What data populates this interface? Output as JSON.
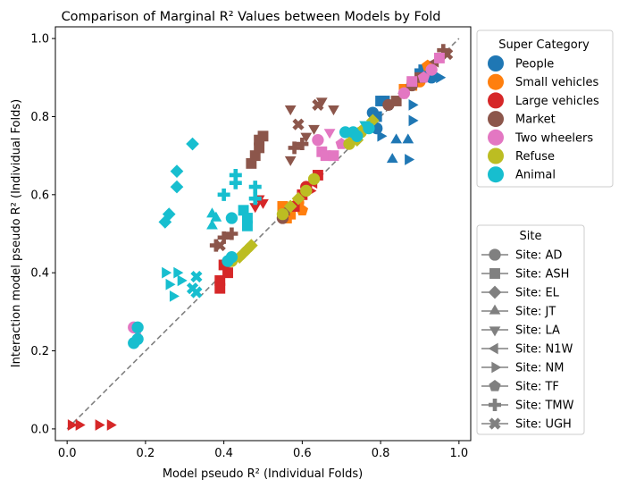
{
  "chart_data": {
    "type": "scatter",
    "title": "Comparison of Marginal R² Values between Models by Fold",
    "xlabel": "Model pseudo R² (Individual Folds)",
    "ylabel": "Interaction model pseudo R² (Individual Folds)",
    "xlim": [
      -0.03,
      1.03
    ],
    "ylim": [
      -0.03,
      1.03
    ],
    "xticks": [
      "0.0",
      "0.2",
      "0.4",
      "0.6",
      "0.8",
      "1.0"
    ],
    "yticks": [
      "0.0",
      "0.2",
      "0.4",
      "0.6",
      "0.8",
      "1.0"
    ],
    "reference_line": "y = x (dashed, gray)",
    "grid": false,
    "legends": [
      {
        "title": "Super Category",
        "placement": "top-right outside",
        "entries": [
          {
            "label": "People",
            "color": "#1f77b4"
          },
          {
            "label": "Small vehicles",
            "color": "#ff7f0e"
          },
          {
            "label": "Large vehicles",
            "color": "#d62728"
          },
          {
            "label": "Market",
            "color": "#8c564b"
          },
          {
            "label": "Two wheelers",
            "color": "#e377c2"
          },
          {
            "label": "Refuse",
            "color": "#bcbd22"
          },
          {
            "label": "Animal",
            "color": "#17becf"
          }
        ]
      },
      {
        "title": "Site",
        "placement": "bottom-right outside",
        "entries": [
          {
            "label": "Site: AD",
            "marker": "circle"
          },
          {
            "label": "Site: ASH",
            "marker": "square"
          },
          {
            "label": "Site: EL",
            "marker": "diamond"
          },
          {
            "label": "Site: JT",
            "marker": "triangle-up"
          },
          {
            "label": "Site: LA",
            "marker": "triangle-down"
          },
          {
            "label": "Site: N1W",
            "marker": "triangle-left"
          },
          {
            "label": "Site: NM",
            "marker": "triangle-right"
          },
          {
            "label": "Site: TF",
            "marker": "pentagon"
          },
          {
            "label": "Site: TMW",
            "marker": "plus"
          },
          {
            "label": "Site: UGH",
            "marker": "x"
          }
        ]
      }
    ],
    "series": [
      {
        "name": "People",
        "color": "#1f77b4",
        "points": [
          {
            "x": 0.78,
            "y": 0.81,
            "m": "circle"
          },
          {
            "x": 0.79,
            "y": 0.8,
            "m": "square"
          },
          {
            "x": 0.8,
            "y": 0.84,
            "m": "square"
          },
          {
            "x": 0.81,
            "y": 0.84,
            "m": "square"
          },
          {
            "x": 0.82,
            "y": 0.83,
            "m": "pentagon"
          },
          {
            "x": 0.84,
            "y": 0.74,
            "m": "triangle-up"
          },
          {
            "x": 0.87,
            "y": 0.74,
            "m": "triangle-up"
          },
          {
            "x": 0.83,
            "y": 0.69,
            "m": "triangle-up"
          },
          {
            "x": 0.87,
            "y": 0.69,
            "m": "triangle-right"
          },
          {
            "x": 0.88,
            "y": 0.79,
            "m": "triangle-right"
          },
          {
            "x": 0.88,
            "y": 0.83,
            "m": "triangle-right"
          },
          {
            "x": 0.9,
            "y": 0.91,
            "m": "square"
          },
          {
            "x": 0.91,
            "y": 0.92,
            "m": "square"
          },
          {
            "x": 0.93,
            "y": 0.9,
            "m": "circle"
          },
          {
            "x": 0.95,
            "y": 0.9,
            "m": "triangle-right"
          },
          {
            "x": 0.79,
            "y": 0.77,
            "m": "circle"
          },
          {
            "x": 0.8,
            "y": 0.75,
            "m": "triangle-right"
          }
        ]
      },
      {
        "name": "Small vehicles",
        "color": "#ff7f0e",
        "points": [
          {
            "x": 0.57,
            "y": 0.55,
            "m": "square"
          },
          {
            "x": 0.56,
            "y": 0.54,
            "m": "square"
          },
          {
            "x": 0.58,
            "y": 0.57,
            "m": "square"
          },
          {
            "x": 0.59,
            "y": 0.58,
            "m": "circle"
          },
          {
            "x": 0.6,
            "y": 0.56,
            "m": "pentagon"
          },
          {
            "x": 0.55,
            "y": 0.57,
            "m": "square"
          },
          {
            "x": 0.88,
            "y": 0.88,
            "m": "square"
          },
          {
            "x": 0.9,
            "y": 0.89,
            "m": "circle"
          },
          {
            "x": 0.92,
            "y": 0.93,
            "m": "pentagon"
          },
          {
            "x": 0.86,
            "y": 0.87,
            "m": "square"
          }
        ]
      },
      {
        "name": "Large vehicles",
        "color": "#d62728",
        "points": [
          {
            "x": 0.01,
            "y": 0.01,
            "m": "triangle-right"
          },
          {
            "x": 0.03,
            "y": 0.01,
            "m": "triangle-right"
          },
          {
            "x": 0.08,
            "y": 0.01,
            "m": "triangle-right"
          },
          {
            "x": 0.11,
            "y": 0.01,
            "m": "triangle-right"
          },
          {
            "x": 0.39,
            "y": 0.38,
            "m": "square"
          },
          {
            "x": 0.4,
            "y": 0.42,
            "m": "square"
          },
          {
            "x": 0.41,
            "y": 0.4,
            "m": "square"
          },
          {
            "x": 0.39,
            "y": 0.36,
            "m": "square"
          },
          {
            "x": 0.48,
            "y": 0.57,
            "m": "triangle-down"
          },
          {
            "x": 0.49,
            "y": 0.59,
            "m": "triangle-down"
          },
          {
            "x": 0.5,
            "y": 0.58,
            "m": "triangle-down"
          },
          {
            "x": 0.6,
            "y": 0.6,
            "m": "square"
          },
          {
            "x": 0.61,
            "y": 0.62,
            "m": "circle"
          },
          {
            "x": 0.63,
            "y": 0.63,
            "m": "triangle-left"
          },
          {
            "x": 0.64,
            "y": 0.65,
            "m": "square"
          },
          {
            "x": 0.58,
            "y": 0.57,
            "m": "square"
          },
          {
            "x": 0.62,
            "y": 0.61,
            "m": "triangle-right"
          }
        ]
      },
      {
        "name": "Market",
        "color": "#8c564b",
        "points": [
          {
            "x": 0.38,
            "y": 0.47,
            "m": "plus"
          },
          {
            "x": 0.4,
            "y": 0.49,
            "m": "plus"
          },
          {
            "x": 0.42,
            "y": 0.5,
            "m": "plus"
          },
          {
            "x": 0.39,
            "y": 0.47,
            "m": "x"
          },
          {
            "x": 0.47,
            "y": 0.68,
            "m": "square"
          },
          {
            "x": 0.48,
            "y": 0.7,
            "m": "square"
          },
          {
            "x": 0.49,
            "y": 0.74,
            "m": "square"
          },
          {
            "x": 0.5,
            "y": 0.75,
            "m": "square"
          },
          {
            "x": 0.49,
            "y": 0.72,
            "m": "square"
          },
          {
            "x": 0.55,
            "y": 0.54,
            "m": "circle"
          },
          {
            "x": 0.56,
            "y": 0.56,
            "m": "triangle-left"
          },
          {
            "x": 0.57,
            "y": 0.82,
            "m": "triangle-down"
          },
          {
            "x": 0.58,
            "y": 0.72,
            "m": "plus"
          },
          {
            "x": 0.59,
            "y": 0.78,
            "m": "x"
          },
          {
            "x": 0.6,
            "y": 0.73,
            "m": "plus"
          },
          {
            "x": 0.61,
            "y": 0.75,
            "m": "triangle-down"
          },
          {
            "x": 0.63,
            "y": 0.77,
            "m": "triangle-down"
          },
          {
            "x": 0.64,
            "y": 0.83,
            "m": "x"
          },
          {
            "x": 0.65,
            "y": 0.84,
            "m": "triangle-down"
          },
          {
            "x": 0.68,
            "y": 0.82,
            "m": "triangle-down"
          },
          {
            "x": 0.57,
            "y": 0.69,
            "m": "triangle-down"
          },
          {
            "x": 0.82,
            "y": 0.83,
            "m": "circle"
          },
          {
            "x": 0.84,
            "y": 0.84,
            "m": "square"
          },
          {
            "x": 0.86,
            "y": 0.86,
            "m": "triangle-left"
          },
          {
            "x": 0.88,
            "y": 0.88,
            "m": "circle"
          },
          {
            "x": 0.9,
            "y": 0.9,
            "m": "square"
          },
          {
            "x": 0.94,
            "y": 0.94,
            "m": "triangle-left"
          },
          {
            "x": 0.96,
            "y": 0.97,
            "m": "plus"
          },
          {
            "x": 0.97,
            "y": 0.96,
            "m": "x"
          }
        ]
      },
      {
        "name": "Two wheelers",
        "color": "#e377c2",
        "points": [
          {
            "x": 0.17,
            "y": 0.26,
            "m": "circle"
          },
          {
            "x": 0.18,
            "y": 0.25,
            "m": "triangle-left"
          },
          {
            "x": 0.64,
            "y": 0.74,
            "m": "circle"
          },
          {
            "x": 0.65,
            "y": 0.71,
            "m": "square"
          },
          {
            "x": 0.66,
            "y": 0.7,
            "m": "square"
          },
          {
            "x": 0.67,
            "y": 0.76,
            "m": "triangle-down"
          },
          {
            "x": 0.68,
            "y": 0.7,
            "m": "square"
          },
          {
            "x": 0.7,
            "y": 0.73,
            "m": "pentagon"
          },
          {
            "x": 0.86,
            "y": 0.86,
            "m": "circle"
          },
          {
            "x": 0.88,
            "y": 0.89,
            "m": "square"
          },
          {
            "x": 0.91,
            "y": 0.9,
            "m": "pentagon"
          },
          {
            "x": 0.93,
            "y": 0.92,
            "m": "circle"
          },
          {
            "x": 0.95,
            "y": 0.95,
            "m": "square"
          }
        ]
      },
      {
        "name": "Refuse",
        "color": "#bcbd22",
        "points": [
          {
            "x": 0.42,
            "y": 0.43,
            "m": "circle"
          },
          {
            "x": 0.44,
            "y": 0.44,
            "m": "diamond"
          },
          {
            "x": 0.45,
            "y": 0.45,
            "m": "diamond"
          },
          {
            "x": 0.46,
            "y": 0.46,
            "m": "diamond"
          },
          {
            "x": 0.47,
            "y": 0.47,
            "m": "diamond"
          },
          {
            "x": 0.55,
            "y": 0.55,
            "m": "circle"
          },
          {
            "x": 0.57,
            "y": 0.57,
            "m": "diamond"
          },
          {
            "x": 0.59,
            "y": 0.59,
            "m": "diamond"
          },
          {
            "x": 0.61,
            "y": 0.61,
            "m": "circle"
          },
          {
            "x": 0.63,
            "y": 0.64,
            "m": "circle"
          },
          {
            "x": 0.72,
            "y": 0.73,
            "m": "circle"
          },
          {
            "x": 0.73,
            "y": 0.75,
            "m": "square"
          },
          {
            "x": 0.74,
            "y": 0.74,
            "m": "diamond"
          },
          {
            "x": 0.75,
            "y": 0.76,
            "m": "circle"
          },
          {
            "x": 0.76,
            "y": 0.77,
            "m": "pentagon"
          },
          {
            "x": 0.78,
            "y": 0.79,
            "m": "diamond"
          }
        ]
      },
      {
        "name": "Animal",
        "color": "#17becf",
        "points": [
          {
            "x": 0.17,
            "y": 0.22,
            "m": "circle"
          },
          {
            "x": 0.18,
            "y": 0.23,
            "m": "circle"
          },
          {
            "x": 0.18,
            "y": 0.26,
            "m": "circle"
          },
          {
            "x": 0.25,
            "y": 0.53,
            "m": "diamond"
          },
          {
            "x": 0.26,
            "y": 0.55,
            "m": "diamond"
          },
          {
            "x": 0.28,
            "y": 0.62,
            "m": "diamond"
          },
          {
            "x": 0.28,
            "y": 0.66,
            "m": "diamond"
          },
          {
            "x": 0.32,
            "y": 0.73,
            "m": "diamond"
          },
          {
            "x": 0.25,
            "y": 0.4,
            "m": "triangle-right"
          },
          {
            "x": 0.26,
            "y": 0.37,
            "m": "triangle-right"
          },
          {
            "x": 0.27,
            "y": 0.34,
            "m": "triangle-right"
          },
          {
            "x": 0.28,
            "y": 0.4,
            "m": "triangle-right"
          },
          {
            "x": 0.29,
            "y": 0.38,
            "m": "triangle-right"
          },
          {
            "x": 0.32,
            "y": 0.36,
            "m": "x"
          },
          {
            "x": 0.33,
            "y": 0.35,
            "m": "x"
          },
          {
            "x": 0.33,
            "y": 0.39,
            "m": "x"
          },
          {
            "x": 0.37,
            "y": 0.52,
            "m": "triangle-up"
          },
          {
            "x": 0.37,
            "y": 0.55,
            "m": "triangle-up"
          },
          {
            "x": 0.38,
            "y": 0.54,
            "m": "triangle-up"
          },
          {
            "x": 0.4,
            "y": 0.6,
            "m": "plus"
          },
          {
            "x": 0.43,
            "y": 0.65,
            "m": "plus"
          },
          {
            "x": 0.43,
            "y": 0.63,
            "m": "plus"
          },
          {
            "x": 0.42,
            "y": 0.54,
            "m": "circle"
          },
          {
            "x": 0.41,
            "y": 0.43,
            "m": "circle"
          },
          {
            "x": 0.42,
            "y": 0.44,
            "m": "circle"
          },
          {
            "x": 0.46,
            "y": 0.52,
            "m": "square"
          },
          {
            "x": 0.45,
            "y": 0.56,
            "m": "square"
          },
          {
            "x": 0.46,
            "y": 0.54,
            "m": "square"
          },
          {
            "x": 0.48,
            "y": 0.62,
            "m": "plus"
          },
          {
            "x": 0.48,
            "y": 0.59,
            "m": "plus"
          },
          {
            "x": 0.71,
            "y": 0.76,
            "m": "circle"
          },
          {
            "x": 0.73,
            "y": 0.76,
            "m": "circle"
          },
          {
            "x": 0.74,
            "y": 0.75,
            "m": "circle"
          },
          {
            "x": 0.76,
            "y": 0.78,
            "m": "triangle-down"
          },
          {
            "x": 0.77,
            "y": 0.77,
            "m": "circle"
          }
        ]
      }
    ]
  }
}
